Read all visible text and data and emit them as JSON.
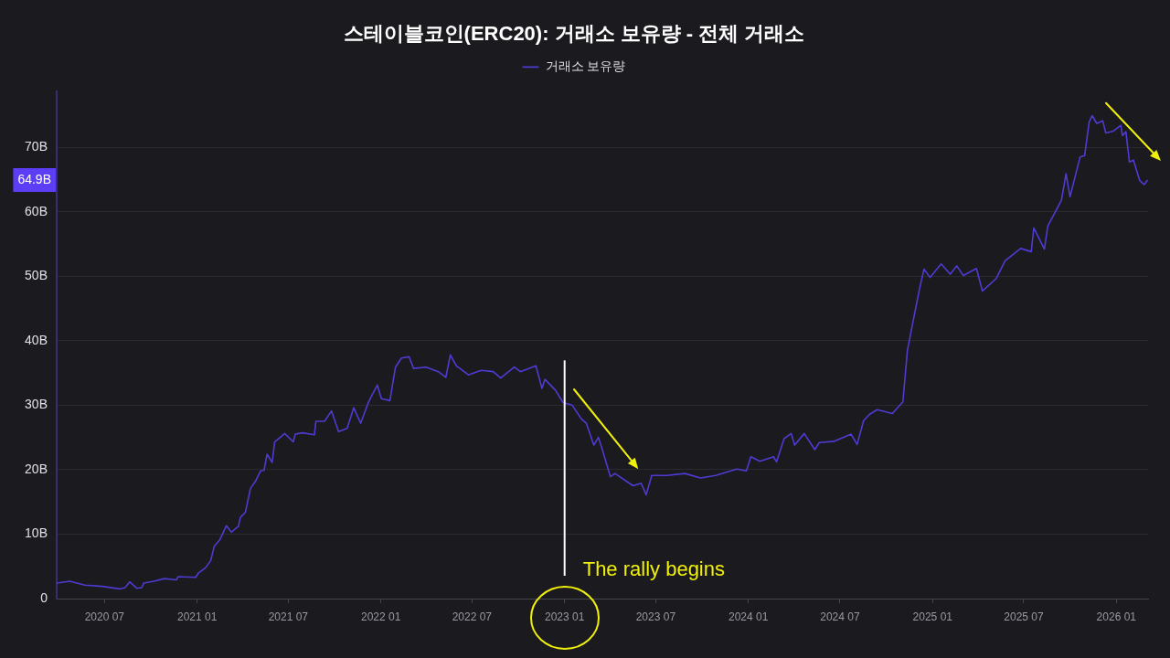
{
  "chart_data": {
    "type": "line",
    "title": "스테이블코인(ERC20): 거래소 보유량 - 전체 거래소",
    "x": [
      "2020-03-28",
      "2020-04-23",
      "2020-05-23",
      "2020-06-27",
      "2020-07-31",
      "2020-08-11",
      "2020-08-20",
      "2020-09-03",
      "2020-09-13",
      "2020-09-17",
      "2020-10-07",
      "2020-10-28",
      "2020-11-21",
      "2020-11-24",
      "2020-12-29",
      "2021-01-04",
      "2021-01-18",
      "2021-01-28",
      "2021-02-04",
      "2021-02-15",
      "2021-02-28",
      "2021-03-10",
      "2021-03-24",
      "2021-03-28",
      "2021-04-07",
      "2021-04-17",
      "2021-04-27",
      "2021-05-07",
      "2021-05-14",
      "2021-05-20",
      "2021-05-30",
      "2021-06-04",
      "2021-06-24",
      "2021-07-11",
      "2021-07-15",
      "2021-07-29",
      "2021-08-22",
      "2021-08-25",
      "2021-09-11",
      "2021-09-25",
      "2021-10-09",
      "2021-10-26",
      "2021-11-08",
      "2021-11-22",
      "2021-12-06",
      "2021-12-12",
      "2021-12-25",
      "2022-01-02",
      "2022-01-19",
      "2022-01-30",
      "2022-02-11",
      "2022-02-26",
      "2022-03-07",
      "2022-04-01",
      "2022-04-25",
      "2022-05-10",
      "2022-05-19",
      "2022-05-31",
      "2022-06-24",
      "2022-07-19",
      "2022-08-12",
      "2022-08-27",
      "2022-09-23",
      "2022-10-05",
      "2022-11-05",
      "2022-11-17",
      "2022-11-23",
      "2022-12-14",
      "2022-12-29",
      "2023-01-16",
      "2023-02-03",
      "2023-02-13",
      "2023-02-28",
      "2023-03-09",
      "2023-03-15",
      "2023-04-02",
      "2023-04-11",
      "2023-05-17",
      "2023-06-02",
      "2023-06-12",
      "2023-06-23",
      "2023-07-23",
      "2023-08-28",
      "2023-09-28",
      "2023-10-28",
      "2023-12-09",
      "2023-12-28",
      "2024-01-06",
      "2024-01-24",
      "2024-02-20",
      "2024-02-26",
      "2024-03-12",
      "2024-03-26",
      "2024-04-02",
      "2024-04-21",
      "2024-05-12",
      "2024-05-21",
      "2024-06-20",
      "2024-07-23",
      "2024-08-04",
      "2024-08-17",
      "2024-08-29",
      "2024-09-13",
      "2024-10-13",
      "2024-11-03",
      "2024-11-12",
      "2024-11-25",
      "2024-12-07",
      "2024-12-15",
      "2024-12-27",
      "2025-01-18",
      "2025-02-05",
      "2025-02-18",
      "2025-03-03",
      "2025-03-29",
      "2025-04-10",
      "2025-05-07",
      "2025-05-25",
      "2025-06-25",
      "2025-07-16",
      "2025-07-21",
      "2025-08-11",
      "2025-08-18",
      "2025-09-02",
      "2025-09-14",
      "2025-09-23",
      "2025-10-01",
      "2025-10-21",
      "2025-10-30",
      "2025-11-08",
      "2025-11-14",
      "2025-11-23",
      "2025-12-05",
      "2025-12-11",
      "2025-12-26",
      "2026-01-10",
      "2026-01-13",
      "2026-01-20",
      "2026-01-27",
      "2026-02-04",
      "2026-02-16",
      "2026-02-25",
      "2026-03-04"
    ],
    "series": [
      {
        "name": "거래소 보유량",
        "color": "#4e3cd2",
        "values": [
          2.4,
          2.7,
          2.1,
          1.9,
          1.5,
          1.7,
          2.6,
          1.6,
          1.7,
          2.4,
          2.7,
          3.1,
          2.9,
          3.4,
          3.3,
          4.0,
          4.8,
          5.9,
          8.1,
          9.1,
          11.3,
          10.3,
          11.2,
          12.6,
          13.4,
          17.1,
          18.2,
          19.8,
          19.9,
          22.4,
          21.1,
          24.3,
          25.6,
          24.3,
          25.5,
          25.7,
          25.4,
          27.5,
          27.5,
          29.1,
          25.9,
          26.4,
          29.6,
          27.2,
          30.2,
          31.2,
          33.1,
          31.0,
          30.7,
          35.9,
          37.3,
          37.5,
          35.7,
          35.9,
          35.2,
          34.3,
          37.8,
          36.1,
          34.7,
          35.4,
          35.2,
          34.2,
          35.9,
          35.2,
          36.1,
          32.6,
          34.0,
          32.3,
          30.4,
          30.0,
          27.9,
          27.2,
          23.8,
          25.0,
          23.6,
          18.9,
          19.4,
          17.5,
          17.9,
          16.1,
          19.1,
          19.1,
          19.4,
          18.7,
          19.1,
          20.1,
          19.8,
          22.0,
          21.3,
          22.0,
          21.2,
          24.8,
          25.6,
          23.8,
          25.6,
          23.1,
          24.2,
          24.4,
          25.5,
          23.9,
          27.6,
          28.6,
          29.3,
          28.7,
          30.5,
          38.5,
          43.7,
          48.4,
          51.1,
          49.8,
          51.9,
          50.3,
          51.6,
          50.1,
          51.2,
          47.7,
          49.6,
          52.4,
          54.3,
          53.8,
          57.5,
          54.2,
          57.8,
          60.0,
          61.8,
          65.9,
          62.3,
          68.5,
          68.7,
          73.9,
          74.9,
          73.7,
          74.1,
          72.2,
          72.5,
          73.4,
          71.8,
          72.4,
          67.7,
          68.0,
          64.9,
          64.2,
          64.9
        ]
      }
    ],
    "xlim": [
      "2020-03-28",
      "2026-03-05"
    ],
    "xticks": [
      {
        "value": "2020-07-01",
        "label": "2020 07"
      },
      {
        "value": "2021-01-01",
        "label": "2021 01"
      },
      {
        "value": "2021-07-01",
        "label": "2021 07"
      },
      {
        "value": "2022-01-01",
        "label": "2022 01"
      },
      {
        "value": "2022-07-01",
        "label": "2022 07"
      },
      {
        "value": "2023-01-01",
        "label": "2023 01"
      },
      {
        "value": "2023-07-01",
        "label": "2023 07"
      },
      {
        "value": "2024-01-01",
        "label": "2024 01"
      },
      {
        "value": "2024-07-01",
        "label": "2024 07"
      },
      {
        "value": "2025-01-01",
        "label": "2025 01"
      },
      {
        "value": "2025-07-01",
        "label": "2025 07"
      },
      {
        "value": "2026-01-01",
        "label": "2026 01"
      }
    ],
    "ylim": [
      0,
      78.6
    ],
    "yticks": [
      0,
      {
        "value": 10,
        "label": "10B"
      },
      {
        "value": 20,
        "label": "20B"
      },
      {
        "value": 30,
        "label": "30B"
      },
      {
        "value": 40,
        "label": "40B"
      },
      {
        "value": 50,
        "label": "50B"
      },
      {
        "value": 60,
        "label": "60B"
      },
      {
        "value": 70,
        "label": "70B"
      }
    ],
    "grid": "y",
    "legend": "top",
    "ref_lines": [
      {
        "axis": "x",
        "value": "2023-01-01",
        "label": "The rally begins",
        "color": "#ffffff"
      }
    ],
    "annotations": [
      "64.9B"
    ]
  }
}
